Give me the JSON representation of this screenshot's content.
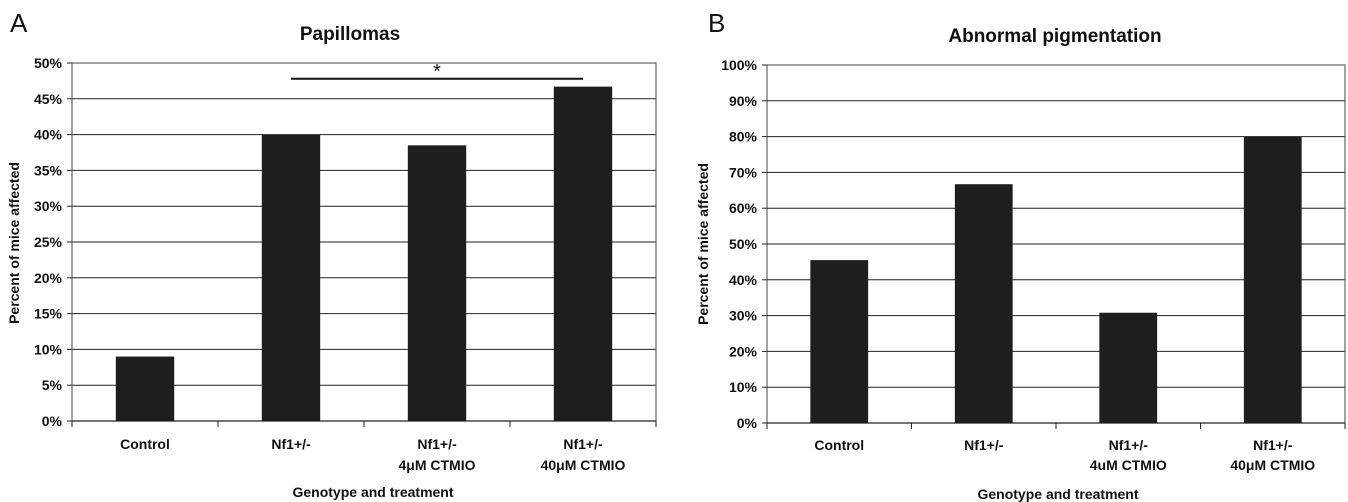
{
  "panels": [
    {
      "letter": "A",
      "chart_data": {
        "type": "bar",
        "title": "Papillomas",
        "xlabel": "Genotype and treatment",
        "ylabel": "Percent of mice affected",
        "categories": [
          [
            "Control"
          ],
          [
            "Nf1+/-"
          ],
          [
            "Nf1+/-",
            "4μM CTMIO"
          ],
          [
            "Nf1+/-",
            "40μM CTMIO"
          ]
        ],
        "values": [
          9,
          40,
          38.5,
          46.7
        ],
        "ylim": [
          0,
          50
        ],
        "ytick_step": 5,
        "ytick_labels": [
          "0%",
          "5%",
          "10%",
          "15%",
          "20%",
          "25%",
          "30%",
          "35%",
          "40%",
          "45%",
          "50%"
        ],
        "grid": true,
        "bar_color": "#1e1e1e",
        "annotations": [
          {
            "type": "significance",
            "from_category": 1,
            "to_category": 3,
            "y": 47.8,
            "text": "*"
          }
        ]
      }
    },
    {
      "letter": "B",
      "chart_data": {
        "type": "bar",
        "title": "Abnormal pigmentation",
        "xlabel": "Genotype and treatment",
        "ylabel": "Percent of mice affected",
        "categories": [
          [
            "Control"
          ],
          [
            "Nf1+/-"
          ],
          [
            "Nf1+/-",
            "4uM CTMIO"
          ],
          [
            "Nf1+/-",
            "40μM CTMIO"
          ]
        ],
        "values": [
          45.5,
          66.7,
          30.8,
          80
        ],
        "ylim": [
          0,
          100
        ],
        "ytick_step": 10,
        "ytick_labels": [
          "0%",
          "10%",
          "20%",
          "30%",
          "40%",
          "50%",
          "60%",
          "70%",
          "80%",
          "90%",
          "100%"
        ],
        "grid": true,
        "bar_color": "#1e1e1e",
        "annotations": []
      }
    }
  ]
}
